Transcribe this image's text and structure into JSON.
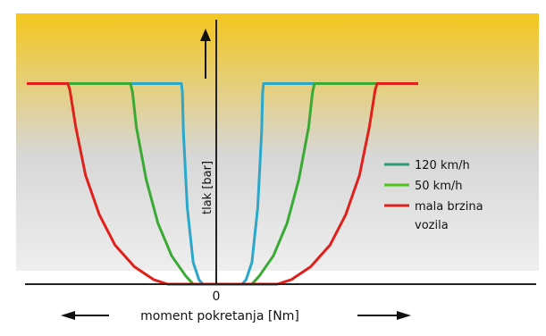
{
  "chart_data": {
    "type": "line",
    "title": "",
    "xlabel": "moment pokretanja  [Nm]",
    "ylabel": "tlak  [bar]",
    "origin_label": "0",
    "xlim": [
      -100,
      100
    ],
    "ylim": [
      0,
      100
    ],
    "grid": false,
    "legend_position": "right",
    "background_gradient": [
      "#f4c61d",
      "#d7d7d7"
    ],
    "series": [
      {
        "name": "120 km/h",
        "color": "#2aa7c9",
        "points": [
          [
            -100,
            92
          ],
          [
            -21,
            92
          ],
          [
            -20.5,
            88
          ],
          [
            -20,
            70
          ],
          [
            -18,
            35
          ],
          [
            -15,
            10
          ],
          [
            -12,
            2
          ],
          [
            -10,
            0
          ],
          [
            10,
            0
          ],
          [
            12,
            2
          ],
          [
            15,
            10
          ],
          [
            18,
            35
          ],
          [
            20,
            70
          ],
          [
            20.5,
            88
          ],
          [
            21,
            92
          ],
          [
            100,
            92
          ]
        ]
      },
      {
        "name": "50 km/h",
        "color": "#3aaa35",
        "points": [
          [
            -100,
            92
          ],
          [
            -47,
            92
          ],
          [
            -46,
            88
          ],
          [
            -44,
            72
          ],
          [
            -39,
            48
          ],
          [
            -33,
            28
          ],
          [
            -26,
            13
          ],
          [
            -19,
            4
          ],
          [
            -15,
            0
          ],
          [
            15,
            0
          ],
          [
            19,
            4
          ],
          [
            26,
            13
          ],
          [
            33,
            28
          ],
          [
            39,
            48
          ],
          [
            44,
            72
          ],
          [
            46,
            88
          ],
          [
            47,
            92
          ],
          [
            100,
            92
          ]
        ]
      },
      {
        "name": "mala brzina vozila",
        "color": "#e0201b",
        "points": [
          [
            -100,
            92
          ],
          [
            -79,
            92
          ],
          [
            -78,
            89
          ],
          [
            -75,
            72
          ],
          [
            -70,
            50
          ],
          [
            -63,
            32
          ],
          [
            -55,
            18
          ],
          [
            -45,
            8
          ],
          [
            -35,
            2
          ],
          [
            -28,
            0
          ],
          [
            28,
            0
          ],
          [
            35,
            2
          ],
          [
            45,
            8
          ],
          [
            55,
            18
          ],
          [
            63,
            32
          ],
          [
            70,
            50
          ],
          [
            75,
            72
          ],
          [
            78,
            89
          ],
          [
            79,
            92
          ],
          [
            100,
            92
          ]
        ]
      }
    ],
    "legend": [
      {
        "label": "120 km/h",
        "color": "#2a9a7a"
      },
      {
        "label": "50 km/h",
        "color": "#4cc21b"
      },
      {
        "label": "mala brzina",
        "color": "#e0201b"
      },
      {
        "label": "vozila",
        "color": ""
      }
    ]
  }
}
